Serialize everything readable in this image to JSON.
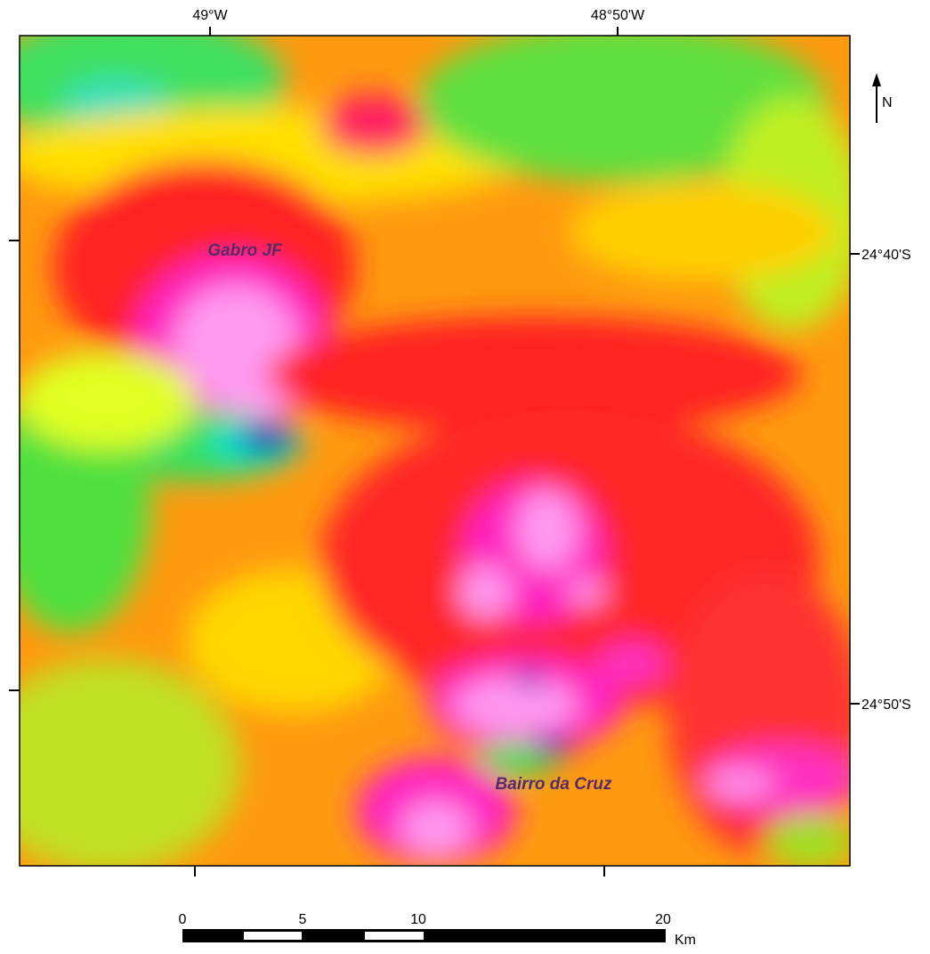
{
  "map": {
    "top_labels": [
      "49°W",
      "48°50'W"
    ],
    "right_labels": [
      "24°40'S",
      "24°50'S"
    ],
    "north": "N",
    "places": [
      "Gabro JF",
      "Bairro da Cruz"
    ],
    "scale": {
      "ticks": [
        "0",
        "5",
        "10",
        "20"
      ],
      "unit": "Km"
    }
  }
}
